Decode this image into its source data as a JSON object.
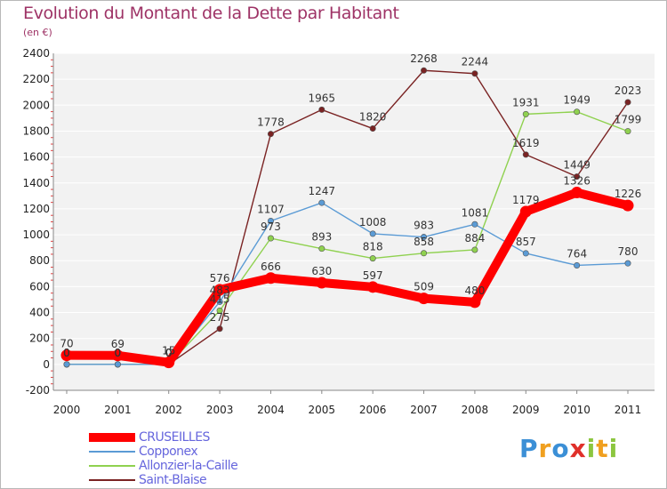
{
  "chart_data": {
    "type": "line",
    "title": "Evolution du Montant de la Dette par Habitant",
    "unit": "(en €)",
    "x": [
      "2000",
      "2001",
      "2002",
      "2003",
      "2004",
      "2005",
      "2006",
      "2007",
      "2008",
      "2009",
      "2010",
      "2011"
    ],
    "ylim": [
      -200,
      2400
    ],
    "yticks": [
      -200,
      0,
      200,
      400,
      600,
      800,
      1000,
      1200,
      1400,
      1600,
      1800,
      2000,
      2200,
      2400
    ],
    "grid": "horizontal",
    "legend_position": "bottom-left",
    "series": [
      {
        "name": "CRUSEILLES",
        "color": "#ff0000",
        "values": [
          70,
          69,
          15,
          576,
          666,
          630,
          597,
          509,
          480,
          1179,
          1326,
          1226
        ]
      },
      {
        "name": "Copponex",
        "color": "#5b9bd5",
        "values": [
          0,
          0,
          0,
          483,
          1107,
          1247,
          1008,
          983,
          1081,
          857,
          764,
          780
        ]
      },
      {
        "name": "Allonzier-la-Caille",
        "color": "#8fd14f",
        "values": [
          0,
          0,
          0,
          415,
          973,
          893,
          818,
          858,
          884,
          1931,
          1949,
          1799
        ]
      },
      {
        "name": "Saint-Blaise",
        "color": "#7a2323",
        "values": [
          0,
          0,
          0,
          275,
          1778,
          1965,
          1820,
          2268,
          2244,
          1619,
          1449,
          2023
        ]
      }
    ]
  },
  "brand": {
    "letters": [
      {
        "ch": "P",
        "color": "#3b8fd6"
      },
      {
        "ch": "r",
        "color": "#f0a020"
      },
      {
        "ch": "o",
        "color": "#3b8fd6"
      },
      {
        "ch": "x",
        "color": "#e0302a"
      },
      {
        "ch": "i",
        "color": "#8cc63f"
      },
      {
        "ch": "t",
        "color": "#f0a020"
      },
      {
        "ch": "i",
        "color": "#8cc63f"
      }
    ]
  }
}
